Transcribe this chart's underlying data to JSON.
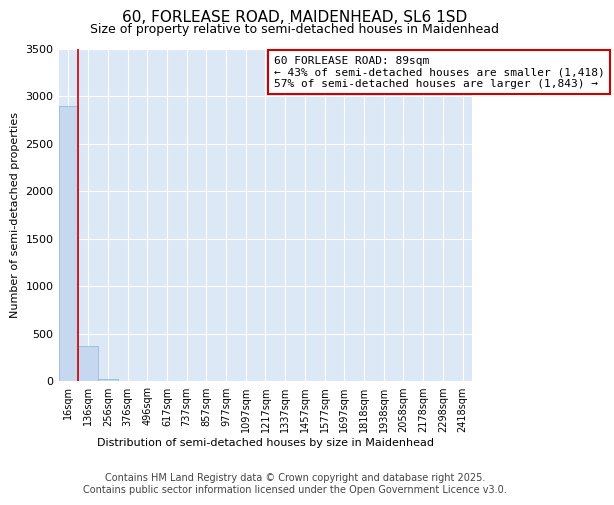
{
  "title": "60, FORLEASE ROAD, MAIDENHEAD, SL6 1SD",
  "subtitle": "Size of property relative to semi-detached houses in Maidenhead",
  "xlabel": "Distribution of semi-detached houses by size in Maidenhead",
  "ylabel": "Number of semi-detached properties",
  "categories": [
    "16sqm",
    "136sqm",
    "256sqm",
    "376sqm",
    "496sqm",
    "617sqm",
    "737sqm",
    "857sqm",
    "977sqm",
    "1097sqm",
    "1217sqm",
    "1337sqm",
    "1457sqm",
    "1577sqm",
    "1697sqm",
    "1818sqm",
    "1938sqm",
    "2058sqm",
    "2178sqm",
    "2298sqm",
    "2418sqm"
  ],
  "bar_heights": [
    2900,
    370,
    30,
    4,
    1,
    0,
    0,
    0,
    0,
    0,
    0,
    0,
    0,
    0,
    0,
    0,
    0,
    0,
    0,
    0,
    0
  ],
  "bar_color": "#c5d8ef",
  "bar_edge_color": "#8ab4d8",
  "property_line_color": "#cc0000",
  "annotation_line1": "60 FORLEASE ROAD: 89sqm",
  "annotation_line2": "← 43% of semi-detached houses are smaller (1,418)",
  "annotation_line3": "57% of semi-detached houses are larger (1,843) →",
  "annotation_box_color": "#cc0000",
  "ylim": [
    0,
    3500
  ],
  "background_color": "#dce8f5",
  "grid_color": "#ffffff",
  "footer": "Contains HM Land Registry data © Crown copyright and database right 2025.\nContains public sector information licensed under the Open Government Licence v3.0.",
  "title_fontsize": 11,
  "subtitle_fontsize": 9,
  "xlabel_fontsize": 8,
  "ylabel_fontsize": 8,
  "tick_fontsize": 7,
  "annotation_fontsize": 8,
  "footer_fontsize": 7
}
